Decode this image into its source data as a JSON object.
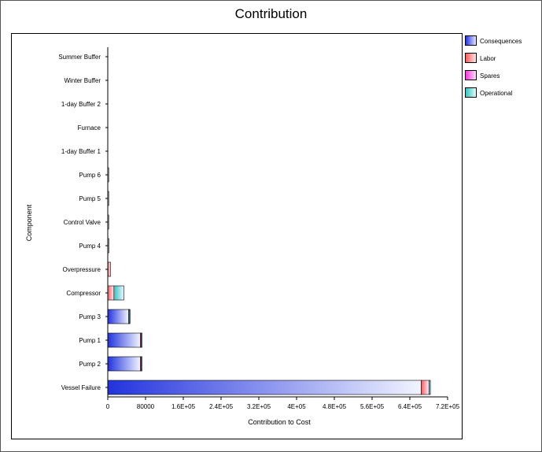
{
  "chart_data": {
    "type": "bar",
    "orientation": "horizontal",
    "stacked": true,
    "title": "Contribution",
    "xlabel": "Contribution to Cost",
    "ylabel": "Component",
    "xlim": [
      0,
      720000
    ],
    "x_ticks": [
      {
        "value": 0,
        "label": "0"
      },
      {
        "value": 80000,
        "label": "80000"
      },
      {
        "value": 160000,
        "label": "1.6E+05"
      },
      {
        "value": 240000,
        "label": "2.4E+05"
      },
      {
        "value": 320000,
        "label": "3.2E+05"
      },
      {
        "value": 400000,
        "label": "4E+05"
      },
      {
        "value": 480000,
        "label": "4.8E+05"
      },
      {
        "value": 560000,
        "label": "5.6E+05"
      },
      {
        "value": 640000,
        "label": "6.4E+05"
      },
      {
        "value": 720000,
        "label": "7.2E+05"
      }
    ],
    "categories": [
      "Vessel Failure",
      "Pump 2",
      "Pump 1",
      "Pump 3",
      "Compressor",
      "Overpressure",
      "Pump 4",
      "Control Valve",
      "Pump 5",
      "Pump 6",
      "1-day Buffer 1",
      "Furnace",
      "1-day Buffer 2",
      "Winter Buffer",
      "Summer Buffer"
    ],
    "series": [
      {
        "name": "Consequences",
        "color": "#2233dd",
        "values": [
          664000,
          69000,
          69000,
          44000,
          0,
          0,
          0,
          0,
          0,
          0,
          0,
          0,
          0,
          0,
          0
        ]
      },
      {
        "name": "Labor",
        "color": "#ff5a5a",
        "values": [
          17000,
          2000,
          2000,
          1500,
          13000,
          6000,
          2500,
          2000,
          2000,
          2000,
          0,
          0,
          0,
          0,
          0
        ]
      },
      {
        "name": "Spares",
        "color": "#ff33dd",
        "values": [
          0,
          0,
          0,
          0,
          0,
          0,
          0,
          0,
          0,
          0,
          0,
          0,
          0,
          0,
          0
        ]
      },
      {
        "name": "Operational",
        "color": "#33c4c0",
        "values": [
          2500,
          1000,
          1000,
          500,
          21000,
          0,
          0,
          0,
          0,
          0,
          0,
          0,
          0,
          0,
          0
        ]
      }
    ],
    "grid": false,
    "legend_position": "right"
  }
}
